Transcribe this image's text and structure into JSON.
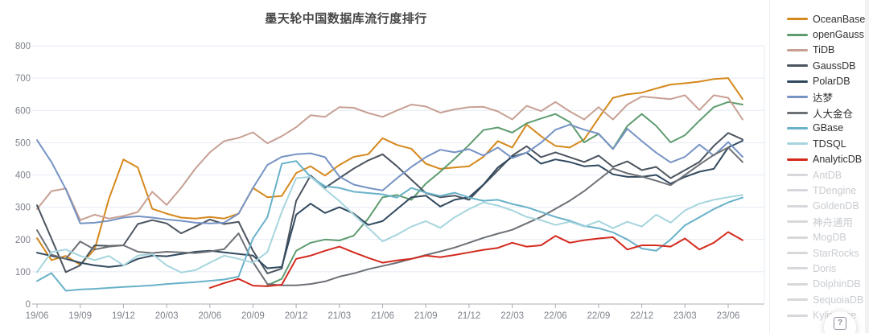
{
  "help": {
    "icon": "?"
  },
  "chart_data": {
    "type": "line",
    "title": "墨天轮中国数据库流行度排行",
    "xlabel": "",
    "ylabel": "",
    "ylim": [
      0,
      800
    ],
    "yticks": [
      0,
      100,
      200,
      300,
      400,
      500,
      600,
      700,
      800
    ],
    "grid": true,
    "legend_position": "right",
    "x_tick_labels": [
      "19/06",
      "19/09",
      "19/12",
      "20/03",
      "20/06",
      "20/09",
      "20/12",
      "21/03",
      "21/06",
      "21/09",
      "21/12",
      "22/03",
      "22/06",
      "22/09",
      "22/12",
      "23/03",
      "23/06"
    ],
    "x": [
      "19/06",
      "19/07",
      "19/08",
      "19/09",
      "19/10",
      "19/11",
      "19/12",
      "20/01",
      "20/02",
      "20/03",
      "20/04",
      "20/05",
      "20/06",
      "20/07",
      "20/08",
      "20/09",
      "20/10",
      "20/11",
      "20/12",
      "21/01",
      "21/02",
      "21/03",
      "21/04",
      "21/05",
      "21/06",
      "21/07",
      "21/08",
      "21/09",
      "21/10",
      "21/11",
      "21/12",
      "22/01",
      "22/02",
      "22/03",
      "22/04",
      "22/05",
      "22/06",
      "22/07",
      "22/08",
      "22/09",
      "22/10",
      "22/11",
      "22/12",
      "23/01",
      "23/02",
      "23/03",
      "23/04",
      "23/05",
      "23/06",
      "23/07"
    ],
    "series": [
      {
        "name": "OceanBase",
        "color": "#d5881c",
        "values": [
          204,
          136,
          149,
          122,
          169,
          327,
          448,
          423,
          295,
          280,
          268,
          265,
          270,
          265,
          280,
          360,
          331,
          335,
          406,
          427,
          398,
          431,
          456,
          464,
          514,
          493,
          481,
          435,
          419,
          423,
          427,
          456,
          505,
          485,
          556,
          520,
          490,
          485,
          510,
          576,
          639,
          650,
          655,
          668,
          680,
          684,
          689,
          697,
          700,
          635
        ]
      },
      {
        "name": "openGauss",
        "color": "#5e9c6f",
        "values": [
          null,
          null,
          null,
          null,
          null,
          null,
          null,
          null,
          null,
          null,
          null,
          null,
          null,
          null,
          null,
          null,
          58,
          78,
          165,
          190,
          200,
          197,
          212,
          265,
          331,
          338,
          323,
          373,
          410,
          450,
          493,
          539,
          547,
          531,
          560,
          575,
          589,
          564,
          501,
          527,
          481,
          552,
          589,
          552,
          501,
          523,
          568,
          610,
          626,
          618
        ]
      },
      {
        "name": "TiDB",
        "color": "#c7a094",
        "values": [
          294,
          350,
          358,
          260,
          277,
          265,
          273,
          285,
          348,
          307,
          360,
          420,
          470,
          505,
          515,
          532,
          498,
          520,
          548,
          585,
          580,
          610,
          608,
          592,
          580,
          600,
          618,
          612,
          593,
          603,
          610,
          611,
          597,
          572,
          614,
          598,
          626,
          597,
          572,
          610,
          572,
          618,
          643,
          639,
          635,
          647,
          601,
          647,
          639,
          572
        ]
      },
      {
        "name": "GaussDB",
        "color": "#4b545f",
        "values": [
          306,
          203,
          99,
          120,
          182,
          180,
          182,
          248,
          260,
          250,
          219,
          240,
          262,
          248,
          255,
          165,
          95,
          110,
          320,
          398,
          360,
          390,
          420,
          445,
          464,
          427,
          385,
          344,
          331,
          336,
          323,
          369,
          414,
          460,
          489,
          455,
          470,
          455,
          440,
          460,
          425,
          442,
          415,
          425,
          390,
          415,
          440,
          490,
          530,
          510
        ]
      },
      {
        "name": "PolarDB",
        "color": "#31495f",
        "values": [
          159,
          149,
          140,
          128,
          120,
          115,
          120,
          140,
          150,
          148,
          155,
          162,
          165,
          160,
          155,
          150,
          111,
          115,
          277,
          311,
          282,
          300,
          280,
          245,
          257,
          294,
          331,
          336,
          302,
          323,
          331,
          370,
          423,
          456,
          469,
          435,
          448,
          440,
          427,
          430,
          402,
          394,
          394,
          400,
          373,
          394,
          410,
          419,
          485,
          506
        ]
      },
      {
        "name": "达梦",
        "color": "#7693c4",
        "values": [
          508,
          440,
          356,
          250,
          252,
          258,
          268,
          272,
          268,
          262,
          258,
          252,
          250,
          252,
          280,
          360,
          431,
          456,
          464,
          467,
          455,
          395,
          370,
          360,
          352,
          390,
          425,
          455,
          478,
          470,
          480,
          460,
          485,
          452,
          469,
          500,
          540,
          556,
          540,
          528,
          480,
          543,
          505,
          469,
          439,
          456,
          494,
          460,
          502,
          456
        ]
      },
      {
        "name": "人大金仓",
        "color": "#6d7075",
        "values": [
          229,
          153,
          140,
          194,
          169,
          178,
          182,
          162,
          158,
          162,
          160,
          158,
          163,
          170,
          219,
          130,
          62,
          58,
          58,
          62,
          70,
          85,
          95,
          108,
          118,
          128,
          140,
          152,
          163,
          175,
          190,
          205,
          218,
          230,
          250,
          270,
          295,
          320,
          350,
          385,
          420,
          405,
          395,
          382,
          368,
          400,
          432,
          462,
          485,
          440
        ]
      },
      {
        "name": "GBase",
        "color": "#68b1c8",
        "values": [
          71,
          96,
          41,
          45,
          47,
          50,
          53,
          55,
          58,
          62,
          65,
          68,
          72,
          76,
          85,
          203,
          269,
          435,
          443,
          394,
          365,
          360,
          348,
          344,
          340,
          330,
          360,
          345,
          335,
          345,
          330,
          320,
          323,
          310,
          300,
          285,
          270,
          258,
          242,
          235,
          222,
          200,
          172,
          165,
          200,
          244,
          269,
          294,
          315,
          330
        ]
      },
      {
        "name": "TDSQL",
        "color": "#a6d5de",
        "values": [
          99,
          161,
          169,
          149,
          136,
          149,
          120,
          150,
          155,
          120,
          98,
          105,
          128,
          150,
          140,
          128,
          161,
          286,
          390,
          394,
          356,
          319,
          277,
          236,
          194,
          215,
          240,
          257,
          236,
          269,
          294,
          315,
          305,
          290,
          270,
          260,
          245,
          255,
          240,
          257,
          235,
          255,
          240,
          277,
          252,
          290,
          311,
          323,
          331,
          338
        ]
      },
      {
        "name": "AnalyticDB",
        "color": "#d42a1e",
        "values": [
          null,
          null,
          null,
          null,
          null,
          null,
          null,
          null,
          null,
          null,
          null,
          null,
          50,
          65,
          78,
          57,
          55,
          60,
          140,
          150,
          165,
          178,
          160,
          143,
          128,
          135,
          140,
          150,
          145,
          152,
          160,
          168,
          174,
          190,
          178,
          182,
          211,
          190,
          198,
          203,
          207,
          169,
          182,
          182,
          178,
          203,
          169,
          190,
          223,
          198
        ]
      }
    ],
    "legend": [
      {
        "label": "OceanBase",
        "color": "#d5881c",
        "active": true
      },
      {
        "label": "openGauss",
        "color": "#5e9c6f",
        "active": true
      },
      {
        "label": "TiDB",
        "color": "#c7a094",
        "active": true
      },
      {
        "label": "GaussDB",
        "color": "#4b545f",
        "active": true
      },
      {
        "label": "PolarDB",
        "color": "#31495f",
        "active": true
      },
      {
        "label": "达梦",
        "color": "#7693c4",
        "active": true
      },
      {
        "label": "人大金仓",
        "color": "#6d7075",
        "active": true
      },
      {
        "label": "GBase",
        "color": "#68b1c8",
        "active": true
      },
      {
        "label": "TDSQL",
        "color": "#a6d5de",
        "active": true
      },
      {
        "label": "AnalyticDB",
        "color": "#d42a1e",
        "active": true
      },
      {
        "label": "AntDB",
        "color": "#d6d8db",
        "active": false
      },
      {
        "label": "TDengine",
        "color": "#d6d8db",
        "active": false
      },
      {
        "label": "GoldenDB",
        "color": "#d6d8db",
        "active": false
      },
      {
        "label": "神舟通用",
        "color": "#d6d8db",
        "active": false
      },
      {
        "label": "MogDB",
        "color": "#d6d8db",
        "active": false
      },
      {
        "label": "StarRocks",
        "color": "#d6d8db",
        "active": false
      },
      {
        "label": "Doris",
        "color": "#d6d8db",
        "active": false
      },
      {
        "label": "DolphinDB",
        "color": "#d6d8db",
        "active": false
      },
      {
        "label": "SequoiaDB",
        "color": "#d6d8db",
        "active": false
      },
      {
        "label": "Kyligence",
        "color": "#d6d8db",
        "active": false
      }
    ],
    "style": {
      "grid_color": "#e4ebf4",
      "axis_color": "#a8adb5",
      "tick_label_color": "#7e838c"
    }
  }
}
